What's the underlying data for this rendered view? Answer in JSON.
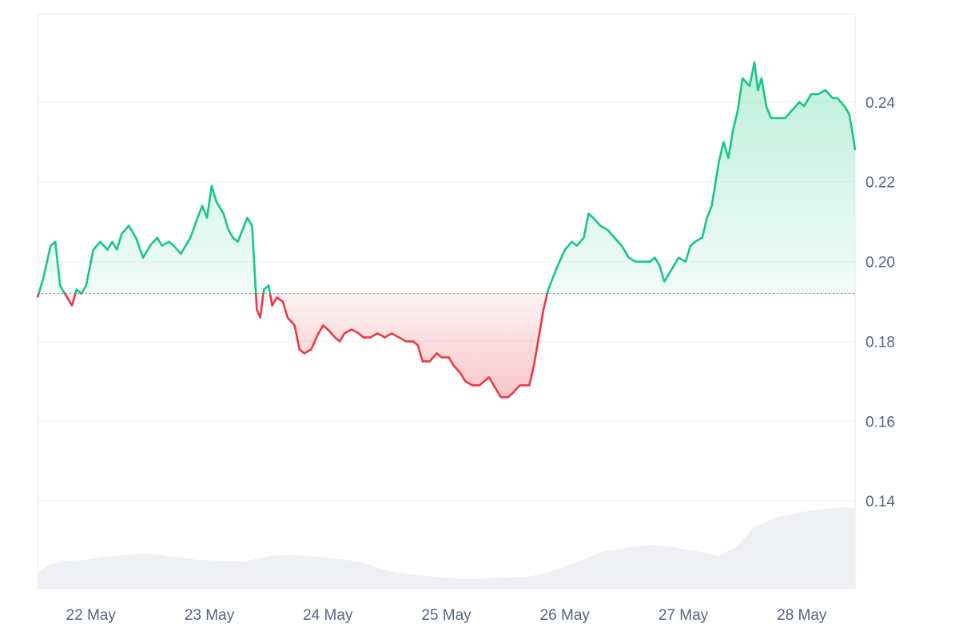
{
  "chart_data": {
    "type": "area",
    "title": "",
    "xlabel": "",
    "ylabel": "",
    "ylim": [
      0.118,
      0.262
    ],
    "baseline": 0.192,
    "x_ticks": [
      "22 May",
      "23 May",
      "24 May",
      "25 May",
      "26 May",
      "27 May",
      "28 May"
    ],
    "y_ticks": [
      "0.14",
      "0.16",
      "0.18",
      "0.20",
      "0.22",
      "0.24"
    ],
    "y_tick_values": [
      0.14,
      0.16,
      0.18,
      0.2,
      0.22,
      0.24
    ],
    "x_range_days": [
      21.55,
      28.45
    ],
    "grid": true,
    "colors": {
      "up_line": "#16c784",
      "down_line": "#ea3943",
      "up_fill": "#16c784",
      "down_fill": "#ea3943",
      "volume_fill": "#eef0f4",
      "baseline": "#8a8f99",
      "grid": "#eff2f5",
      "frame": "#e6e9ee"
    },
    "series": [
      {
        "points": [
          [
            21.55,
            0.191
          ],
          [
            21.6,
            0.196
          ],
          [
            21.66,
            0.204
          ],
          [
            21.7,
            0.205
          ],
          [
            21.74,
            0.194
          ],
          [
            21.8,
            0.191
          ],
          [
            21.84,
            0.189
          ],
          [
            21.88,
            0.193
          ],
          [
            21.92,
            0.192
          ],
          [
            21.96,
            0.194
          ],
          [
            22.02,
            0.203
          ],
          [
            22.08,
            0.205
          ],
          [
            22.14,
            0.203
          ],
          [
            22.18,
            0.205
          ],
          [
            22.22,
            0.203
          ],
          [
            22.26,
            0.207
          ],
          [
            22.32,
            0.209
          ],
          [
            22.38,
            0.206
          ],
          [
            22.44,
            0.201
          ],
          [
            22.5,
            0.204
          ],
          [
            22.56,
            0.206
          ],
          [
            22.6,
            0.204
          ],
          [
            22.66,
            0.205
          ],
          [
            22.7,
            0.204
          ],
          [
            22.76,
            0.202
          ],
          [
            22.84,
            0.206
          ],
          [
            22.9,
            0.211
          ],
          [
            22.94,
            0.214
          ],
          [
            22.98,
            0.211
          ],
          [
            23.02,
            0.219
          ],
          [
            23.06,
            0.215
          ],
          [
            23.12,
            0.212
          ],
          [
            23.16,
            0.208
          ],
          [
            23.2,
            0.206
          ],
          [
            23.24,
            0.205
          ],
          [
            23.28,
            0.208
          ],
          [
            23.32,
            0.211
          ],
          [
            23.36,
            0.209
          ],
          [
            23.38,
            0.199
          ],
          [
            23.4,
            0.188
          ],
          [
            23.43,
            0.186
          ],
          [
            23.46,
            0.193
          ],
          [
            23.5,
            0.194
          ],
          [
            23.53,
            0.189
          ],
          [
            23.57,
            0.191
          ],
          [
            23.62,
            0.19
          ],
          [
            23.66,
            0.186
          ],
          [
            23.72,
            0.184
          ],
          [
            23.76,
            0.178
          ],
          [
            23.8,
            0.177
          ],
          [
            23.86,
            0.178
          ],
          [
            23.92,
            0.182
          ],
          [
            23.96,
            0.184
          ],
          [
            24.0,
            0.183
          ],
          [
            24.06,
            0.181
          ],
          [
            24.1,
            0.18
          ],
          [
            24.14,
            0.182
          ],
          [
            24.2,
            0.183
          ],
          [
            24.26,
            0.182
          ],
          [
            24.3,
            0.181
          ],
          [
            24.36,
            0.181
          ],
          [
            24.42,
            0.182
          ],
          [
            24.48,
            0.181
          ],
          [
            24.54,
            0.182
          ],
          [
            24.6,
            0.181
          ],
          [
            24.66,
            0.18
          ],
          [
            24.72,
            0.18
          ],
          [
            24.76,
            0.179
          ],
          [
            24.8,
            0.175
          ],
          [
            24.86,
            0.175
          ],
          [
            24.92,
            0.177
          ],
          [
            24.96,
            0.176
          ],
          [
            25.02,
            0.176
          ],
          [
            25.06,
            0.174
          ],
          [
            25.12,
            0.172
          ],
          [
            25.16,
            0.17
          ],
          [
            25.22,
            0.169
          ],
          [
            25.28,
            0.169
          ],
          [
            25.32,
            0.17
          ],
          [
            25.36,
            0.171
          ],
          [
            25.4,
            0.169
          ],
          [
            25.46,
            0.166
          ],
          [
            25.52,
            0.166
          ],
          [
            25.56,
            0.167
          ],
          [
            25.62,
            0.169
          ],
          [
            25.66,
            0.169
          ],
          [
            25.7,
            0.169
          ],
          [
            25.74,
            0.174
          ],
          [
            25.78,
            0.181
          ],
          [
            25.82,
            0.188
          ],
          [
            25.86,
            0.193
          ],
          [
            25.9,
            0.196
          ],
          [
            25.94,
            0.199
          ],
          [
            26.0,
            0.203
          ],
          [
            26.06,
            0.205
          ],
          [
            26.1,
            0.204
          ],
          [
            26.16,
            0.206
          ],
          [
            26.2,
            0.212
          ],
          [
            26.24,
            0.211
          ],
          [
            26.3,
            0.209
          ],
          [
            26.36,
            0.208
          ],
          [
            26.42,
            0.206
          ],
          [
            26.48,
            0.204
          ],
          [
            26.54,
            0.201
          ],
          [
            26.6,
            0.2
          ],
          [
            26.66,
            0.2
          ],
          [
            26.72,
            0.2
          ],
          [
            26.76,
            0.201
          ],
          [
            26.8,
            0.199
          ],
          [
            26.84,
            0.195
          ],
          [
            26.9,
            0.198
          ],
          [
            26.96,
            0.201
          ],
          [
            27.02,
            0.2
          ],
          [
            27.06,
            0.204
          ],
          [
            27.1,
            0.205
          ],
          [
            27.16,
            0.206
          ],
          [
            27.2,
            0.211
          ],
          [
            27.24,
            0.214
          ],
          [
            27.3,
            0.225
          ],
          [
            27.34,
            0.23
          ],
          [
            27.38,
            0.226
          ],
          [
            27.42,
            0.233
          ],
          [
            27.46,
            0.238
          ],
          [
            27.5,
            0.246
          ],
          [
            27.56,
            0.244
          ],
          [
            27.6,
            0.25
          ],
          [
            27.63,
            0.243
          ],
          [
            27.66,
            0.246
          ],
          [
            27.7,
            0.239
          ],
          [
            27.74,
            0.236
          ],
          [
            27.8,
            0.236
          ],
          [
            27.86,
            0.236
          ],
          [
            27.92,
            0.238
          ],
          [
            27.98,
            0.24
          ],
          [
            28.02,
            0.239
          ],
          [
            28.08,
            0.242
          ],
          [
            28.14,
            0.242
          ],
          [
            28.2,
            0.243
          ],
          [
            28.26,
            0.241
          ],
          [
            28.3,
            0.241
          ],
          [
            28.36,
            0.239
          ],
          [
            28.4,
            0.237
          ],
          [
            28.43,
            0.232
          ],
          [
            28.45,
            0.228
          ]
        ]
      }
    ],
    "volume": {
      "points": [
        [
          21.55,
          0.122
        ],
        [
          21.65,
          0.124
        ],
        [
          21.8,
          0.125
        ],
        [
          21.95,
          0.1252
        ],
        [
          22.1,
          0.126
        ],
        [
          22.3,
          0.1265
        ],
        [
          22.5,
          0.1268
        ],
        [
          22.7,
          0.126
        ],
        [
          22.9,
          0.1252
        ],
        [
          23.1,
          0.125
        ],
        [
          23.3,
          0.1248
        ],
        [
          23.5,
          0.1262
        ],
        [
          23.7,
          0.1265
        ],
        [
          23.9,
          0.126
        ],
        [
          24.1,
          0.1255
        ],
        [
          24.3,
          0.1245
        ],
        [
          24.5,
          0.1225
        ],
        [
          24.7,
          0.1215
        ],
        [
          24.9,
          0.121
        ],
        [
          25.1,
          0.1205
        ],
        [
          25.3,
          0.1205
        ],
        [
          25.5,
          0.1208
        ],
        [
          25.7,
          0.121
        ],
        [
          25.9,
          0.1225
        ],
        [
          26.1,
          0.1245
        ],
        [
          26.3,
          0.1272
        ],
        [
          26.5,
          0.1282
        ],
        [
          26.7,
          0.129
        ],
        [
          26.9,
          0.1285
        ],
        [
          27.1,
          0.1275
        ],
        [
          27.3,
          0.1262
        ],
        [
          27.45,
          0.1285
        ],
        [
          27.6,
          0.1335
        ],
        [
          27.8,
          0.136
        ],
        [
          28.0,
          0.1372
        ],
        [
          28.2,
          0.138
        ],
        [
          28.35,
          0.1385
        ],
        [
          28.45,
          0.138
        ]
      ]
    }
  }
}
